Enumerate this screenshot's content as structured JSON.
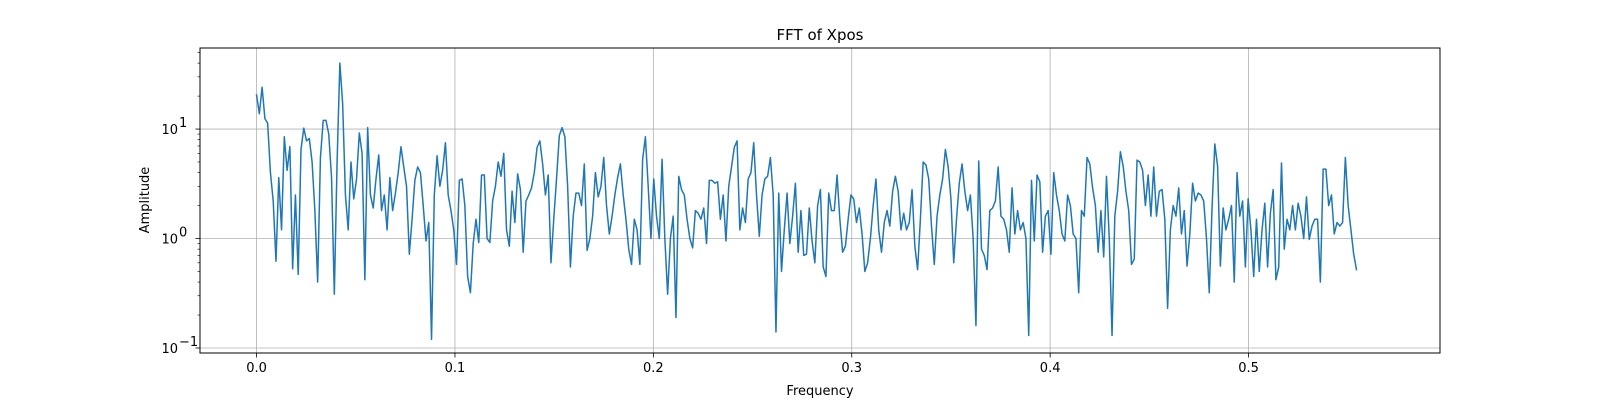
{
  "chart_data": {
    "type": "line",
    "title": "FFT of Xpos",
    "xlabel": "Frequency",
    "ylabel": "Amplitude",
    "xscale": "linear",
    "yscale": "log",
    "xlim": [
      -0.0285,
      0.5965
    ],
    "ylim": [
      0.09,
      55
    ],
    "grid": true,
    "xticks": [
      {
        "value": 0.0,
        "label": "0.0"
      },
      {
        "value": 0.1,
        "label": "0.1"
      },
      {
        "value": 0.2,
        "label": "0.2"
      },
      {
        "value": 0.3,
        "label": "0.3"
      },
      {
        "value": 0.4,
        "label": "0.4"
      },
      {
        "value": 0.5,
        "label": "0.5"
      }
    ],
    "yticks": [
      {
        "value": 0.1,
        "base": "10",
        "exp": "−1"
      },
      {
        "value": 1,
        "base": "10",
        "exp": "0"
      },
      {
        "value": 10,
        "base": "10",
        "exp": "1"
      }
    ],
    "series": [
      {
        "color": "#1f77b4",
        "x_start": 0.0,
        "x_step": 0.0014,
        "values": [
          20.5,
          13.8,
          24.1,
          12.5,
          11.3,
          4.0,
          2.2,
          0.62,
          3.6,
          1.2,
          8.5,
          4.2,
          6.9,
          0.53,
          2.5,
          0.47,
          6.5,
          10.2,
          7.8,
          8.2,
          5.0,
          1.8,
          0.4,
          5.5,
          12.0,
          12.0,
          9.0,
          3.6,
          0.31,
          5.0,
          40.0,
          17.0,
          2.5,
          1.2,
          5.0,
          2.3,
          3.5,
          9.2,
          6.0,
          0.42,
          10.3,
          2.5,
          1.9,
          3.5,
          5.8,
          1.8,
          2.5,
          1.2,
          3.6,
          1.8,
          2.6,
          4.0,
          6.9,
          4.5,
          3.0,
          0.72,
          1.5,
          3.4,
          4.5,
          4.0,
          2.0,
          0.95,
          1.4,
          0.12,
          2.5,
          5.7,
          3.0,
          4.2,
          7.5,
          2.5,
          1.8,
          1.2,
          0.58,
          3.4,
          3.5,
          2.0,
          0.45,
          0.32,
          0.9,
          1.5,
          0.92,
          3.8,
          3.8,
          1.0,
          0.92,
          2.2,
          3.0,
          5.0,
          3.7,
          6.0,
          1.2,
          0.85,
          2.7,
          1.4,
          3.9,
          2.8,
          0.75,
          2.2,
          2.5,
          2.9,
          4.0,
          6.8,
          7.8,
          4.8,
          2.5,
          3.8,
          0.6,
          1.5,
          3.5,
          8.7,
          10.3,
          8.5,
          3.0,
          0.55,
          1.6,
          2.6,
          2.6,
          2.0,
          4.8,
          0.78,
          1.0,
          1.6,
          4.0,
          2.4,
          3.0,
          5.5,
          2.0,
          1.1,
          1.6,
          2.5,
          3.6,
          4.8,
          2.5,
          1.5,
          0.8,
          0.58,
          1.5,
          1.2,
          0.58,
          5.3,
          8.5,
          3.0,
          1.0,
          3.5,
          1.6,
          1.0,
          5.3,
          1.0,
          0.31,
          1.0,
          1.6,
          0.19,
          3.7,
          2.8,
          2.5,
          1.5,
          1.0,
          0.82,
          1.8,
          1.7,
          1.5,
          1.9,
          0.9,
          3.4,
          3.4,
          3.2,
          3.3,
          1.5,
          2.5,
          0.95,
          3.0,
          4.5,
          6.8,
          7.8,
          1.2,
          1.9,
          1.4,
          3.5,
          4.0,
          7.5,
          2.5,
          1.05,
          2.5,
          3.5,
          3.7,
          5.5,
          2.5,
          0.14,
          2.6,
          0.5,
          1.2,
          2.6,
          0.9,
          1.6,
          3.2,
          0.75,
          1.8,
          0.7,
          0.72,
          1.9,
          0.95,
          0.6,
          2.0,
          2.8,
          0.55,
          0.45,
          2.6,
          1.8,
          1.8,
          3.8,
          1.5,
          0.75,
          0.85,
          1.5,
          2.5,
          2.3,
          1.4,
          1.9,
          1.1,
          0.5,
          0.6,
          1.0,
          2.0,
          3.5,
          1.2,
          0.75,
          1.4,
          1.8,
          1.3,
          2.7,
          3.7,
          2.7,
          1.2,
          1.7,
          1.2,
          1.4,
          2.8,
          0.85,
          0.52,
          1.5,
          5.0,
          4.7,
          3.5,
          1.3,
          0.58,
          1.6,
          2.5,
          3.5,
          6.5,
          4.5,
          2.3,
          0.6,
          1.5,
          3.2,
          4.8,
          2.7,
          1.8,
          2.5,
          1.0,
          0.16,
          5.1,
          0.8,
          0.7,
          0.52,
          1.8,
          1.9,
          2.2,
          4.5,
          1.6,
          1.5,
          1.2,
          0.75,
          2.9,
          1.1,
          1.8,
          1.2,
          1.4,
          1.0,
          0.13,
          3.4,
          0.95,
          3.8,
          3.3,
          0.75,
          1.6,
          1.8,
          0.72,
          4.0,
          2.5,
          1.8,
          1.1,
          0.95,
          2.5,
          2.0,
          1.1,
          1.0,
          0.32,
          1.8,
          1.6,
          5.5,
          4.8,
          2.9,
          2.0,
          0.75,
          1.8,
          0.68,
          3.7,
          1.0,
          0.13,
          1.6,
          2.7,
          6.2,
          4.6,
          2.7,
          1.8,
          0.58,
          0.65,
          5.2,
          5.0,
          4.2,
          2.0,
          3.8,
          1.6,
          4.5,
          1.6,
          2.7,
          2.8,
          1.5,
          0.23,
          1.2,
          2.0,
          1.6,
          2.9,
          1.1,
          1.8,
          0.56,
          1.1,
          3.2,
          2.2,
          2.6,
          2.5,
          2.2,
          1.0,
          0.32,
          1.9,
          7.3,
          4.6,
          0.56,
          1.9,
          1.2,
          1.5,
          2.0,
          0.4,
          4.0,
          1.6,
          2.2,
          0.55,
          2.3,
          1.2,
          0.45,
          1.5,
          0.5,
          1.2,
          2.1,
          0.55,
          1.7,
          2.8,
          0.42,
          0.55,
          4.9,
          0.8,
          1.5,
          1.2,
          2.0,
          1.2,
          2.1,
          1.6,
          1.0,
          2.4,
          0.98,
          1.3,
          1.5,
          1.5,
          0.4,
          4.3,
          4.3,
          2.0,
          2.5,
          1.1,
          1.4,
          1.3,
          1.4,
          5.5,
          2.0,
          1.2,
          0.72,
          0.52
        ]
      }
    ]
  }
}
